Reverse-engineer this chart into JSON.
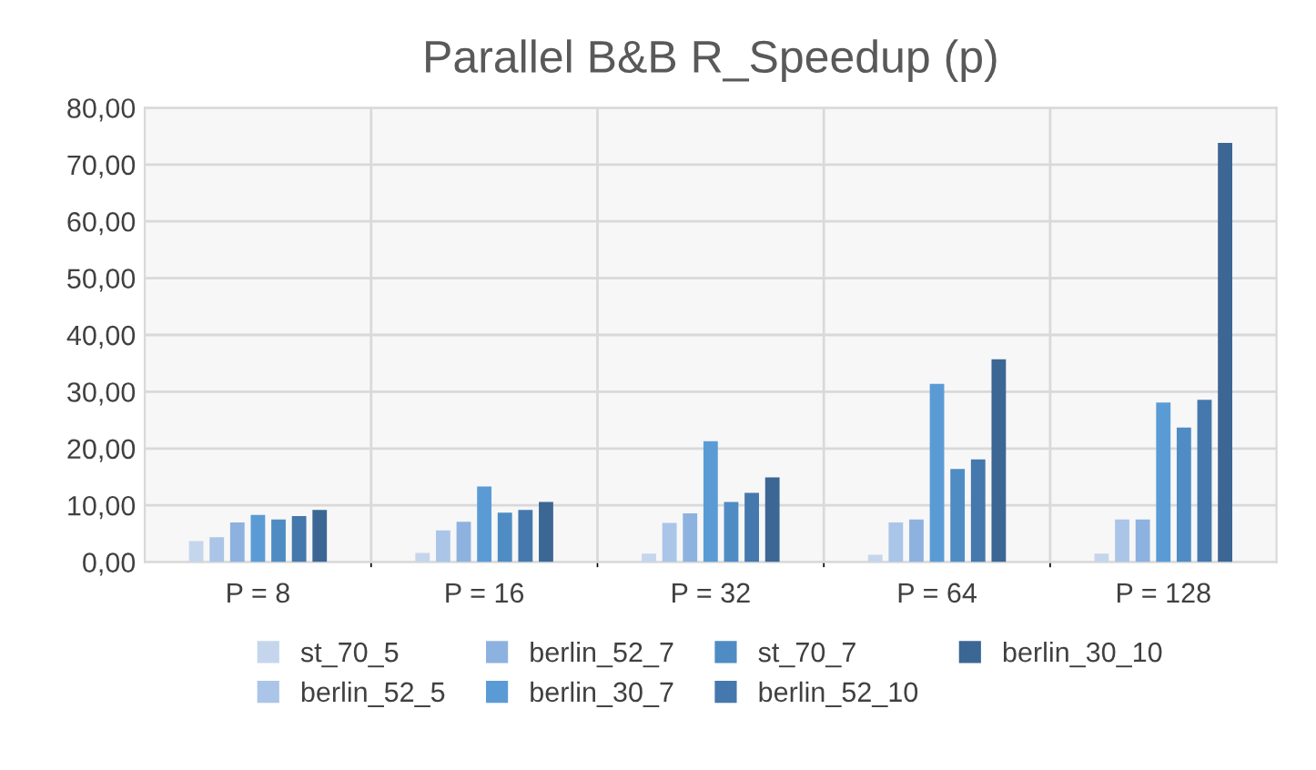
{
  "chart_data": {
    "type": "bar",
    "title": "Parallel B&B R_Speedup (p)",
    "categories": [
      "P = 8",
      "P = 16",
      "P = 32",
      "P = 64",
      "P = 128"
    ],
    "series": [
      {
        "name": "st_70_5",
        "color": "#c5d6ec",
        "values": [
          3.7,
          1.6,
          1.5,
          1.3,
          1.5
        ]
      },
      {
        "name": "berlin_52_5",
        "color": "#aac5e8",
        "values": [
          4.4,
          5.6,
          6.9,
          7.0,
          7.5
        ]
      },
      {
        "name": "berlin_52_7",
        "color": "#8eb2df",
        "values": [
          7.0,
          7.1,
          8.6,
          7.5,
          7.5
        ]
      },
      {
        "name": "berlin_30_7",
        "color": "#5b9bd5",
        "values": [
          8.3,
          13.3,
          21.3,
          31.4,
          28.1
        ]
      },
      {
        "name": "st_70_7",
        "color": "#4f8cc4",
        "values": [
          7.5,
          8.7,
          10.6,
          16.4,
          23.7
        ]
      },
      {
        "name": "berlin_52_10",
        "color": "#4578ad",
        "values": [
          8.1,
          9.2,
          12.2,
          18.1,
          28.6
        ]
      },
      {
        "name": "berlin_30_10",
        "color": "#3c6794",
        "values": [
          9.2,
          10.6,
          14.9,
          35.7,
          73.8
        ]
      }
    ],
    "ylim": [
      0,
      80
    ],
    "yticks": [
      {
        "value": 0,
        "label": "0,00"
      },
      {
        "value": 10,
        "label": "10,00"
      },
      {
        "value": 20,
        "label": "20,00"
      },
      {
        "value": 30,
        "label": "30,00"
      },
      {
        "value": 40,
        "label": "40,00"
      },
      {
        "value": 50,
        "label": "50,00"
      },
      {
        "value": 60,
        "label": "60,00"
      },
      {
        "value": 70,
        "label": "70,00"
      },
      {
        "value": 80,
        "label": "80,00"
      }
    ],
    "grid": true,
    "legend": "bottom"
  }
}
